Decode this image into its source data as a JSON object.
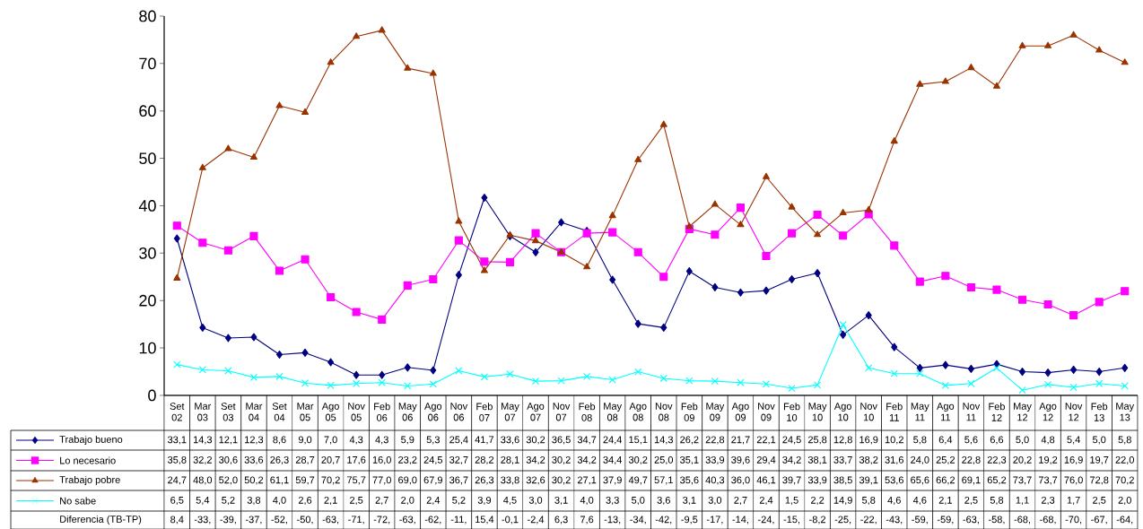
{
  "chart_data": {
    "type": "line",
    "categories": [
      "Set 02",
      "Mar 03",
      "Set 03",
      "Mar 04",
      "Set 04",
      "Mar 05",
      "Ago 05",
      "Nov 05",
      "Feb 06",
      "May 06",
      "Ago 06",
      "Nov 06",
      "Feb 07",
      "May 07",
      "Ago 07",
      "Nov 07",
      "Feb 08",
      "May 08",
      "Ago 08",
      "Nov 08",
      "Feb 09",
      "May 09",
      "Ago 09",
      "Nov 09",
      "Feb 10",
      "May 10",
      "Ago 10",
      "Nov 10",
      "Feb 11",
      "May 11",
      "Ago 11",
      "Nov 11",
      "Feb 12",
      "May 12",
      "Ago 12",
      "Nov 12",
      "Feb 13",
      "May 13"
    ],
    "series": [
      {
        "name": "Trabajo bueno",
        "color": "#000080",
        "marker": "diamond",
        "values": [
          33.1,
          14.3,
          12.1,
          12.3,
          8.6,
          9.0,
          7.0,
          4.3,
          4.3,
          5.9,
          5.3,
          25.4,
          41.7,
          33.6,
          30.2,
          36.5,
          34.7,
          24.4,
          15.1,
          14.3,
          26.2,
          22.8,
          21.7,
          22.1,
          24.5,
          25.8,
          12.8,
          16.9,
          10.2,
          5.8,
          6.4,
          5.6,
          6.6,
          5.0,
          4.8,
          5.4,
          5.0,
          5.8
        ],
        "value_labels": [
          "33,1",
          "14,3",
          "12,1",
          "12,3",
          "8,6",
          "9,0",
          "7,0",
          "4,3",
          "4,3",
          "5,9",
          "5,3",
          "25,4",
          "41,7",
          "33,6",
          "30,2",
          "36,5",
          "34,7",
          "24,4",
          "15,1",
          "14,3",
          "26,2",
          "22,8",
          "21,7",
          "22,1",
          "24,5",
          "25,8",
          "12,8",
          "16,9",
          "10,2",
          "5,8",
          "6,4",
          "5,6",
          "6,6",
          "5,0",
          "4,8",
          "5,4",
          "5,0",
          "5,8"
        ]
      },
      {
        "name": "Lo necesario",
        "color": "#ff00ff",
        "marker": "square",
        "values": [
          35.8,
          32.2,
          30.6,
          33.6,
          26.3,
          28.7,
          20.7,
          17.6,
          16.0,
          23.2,
          24.5,
          32.7,
          28.2,
          28.1,
          34.2,
          30.2,
          34.2,
          34.4,
          30.2,
          25.0,
          35.1,
          33.9,
          39.6,
          29.4,
          34.2,
          38.1,
          33.7,
          38.2,
          31.6,
          24.0,
          25.2,
          22.8,
          22.3,
          20.2,
          19.2,
          16.9,
          19.7,
          22.0
        ],
        "value_labels": [
          "35,8",
          "32,2",
          "30,6",
          "33,6",
          "26,3",
          "28,7",
          "20,7",
          "17,6",
          "16,0",
          "23,2",
          "24,5",
          "32,7",
          "28,2",
          "28,1",
          "34,2",
          "30,2",
          "34,2",
          "34,4",
          "30,2",
          "25,0",
          "35,1",
          "33,9",
          "39,6",
          "29,4",
          "34,2",
          "38,1",
          "33,7",
          "38,2",
          "31,6",
          "24,0",
          "25,2",
          "22,8",
          "22,3",
          "20,2",
          "19,2",
          "16,9",
          "19,7",
          "22,0"
        ]
      },
      {
        "name": "Trabajo pobre",
        "color": "#993300",
        "marker": "triangle",
        "values": [
          24.7,
          48.0,
          52.0,
          50.2,
          61.1,
          59.7,
          70.2,
          75.7,
          77.0,
          69.0,
          67.9,
          36.7,
          26.3,
          33.8,
          32.6,
          30.2,
          27.1,
          37.9,
          49.7,
          57.1,
          35.6,
          40.3,
          36.0,
          46.1,
          39.7,
          33.9,
          38.5,
          39.1,
          53.6,
          65.6,
          66.2,
          69.1,
          65.2,
          73.7,
          73.7,
          76.0,
          72.8,
          70.2
        ],
        "value_labels": [
          "24,7",
          "48,0",
          "52,0",
          "50,2",
          "61,1",
          "59,7",
          "70,2",
          "75,7",
          "77,0",
          "69,0",
          "67,9",
          "36,7",
          "26,3",
          "33,8",
          "32,6",
          "30,2",
          "27,1",
          "37,9",
          "49,7",
          "57,1",
          "35,6",
          "40,3",
          "36,0",
          "46,1",
          "39,7",
          "33,9",
          "38,5",
          "39,1",
          "53,6",
          "65,6",
          "66,2",
          "69,1",
          "65,2",
          "73,7",
          "73,7",
          "76,0",
          "72,8",
          "70,2"
        ]
      },
      {
        "name": "No sabe",
        "color": "#00ffff",
        "marker": "cross",
        "values": [
          6.5,
          5.4,
          5.2,
          3.8,
          4.0,
          2.6,
          2.1,
          2.5,
          2.7,
          2.0,
          2.4,
          5.2,
          3.9,
          4.5,
          3.0,
          3.1,
          4.0,
          3.3,
          5.0,
          3.6,
          3.1,
          3.0,
          2.7,
          2.4,
          1.5,
          2.2,
          14.9,
          5.8,
          4.6,
          4.6,
          2.1,
          2.5,
          5.8,
          1.1,
          2.3,
          1.7,
          2.5,
          2.0
        ],
        "value_labels": [
          "6,5",
          "5,4",
          "5,2",
          "3,8",
          "4,0",
          "2,6",
          "2,1",
          "2,5",
          "2,7",
          "2,0",
          "2,4",
          "5,2",
          "3,9",
          "4,5",
          "3,0",
          "3,1",
          "4,0",
          "3,3",
          "5,0",
          "3,6",
          "3,1",
          "3,0",
          "2,7",
          "2,4",
          "1,5",
          "2,2",
          "14,9",
          "5,8",
          "4,6",
          "4,6",
          "2,1",
          "2,5",
          "5,8",
          "1,1",
          "2,3",
          "1,7",
          "2,5",
          "2,0"
        ]
      },
      {
        "name": "Diferencia  (TB-TP)",
        "values": [
          null,
          null,
          null,
          null,
          null,
          null,
          null,
          null,
          null,
          null,
          null,
          null,
          null,
          null,
          null,
          null,
          null,
          null,
          null,
          null,
          null,
          null,
          null,
          null,
          null,
          null,
          null,
          null,
          null,
          null,
          null,
          null,
          null,
          null,
          null,
          null,
          null,
          null
        ],
        "value_labels": [
          "8,4",
          "-33,",
          "-39,",
          "-37,",
          "-52,",
          "-50,",
          "-63,",
          "-71,",
          "-72,",
          "-63,",
          "-62,",
          "-11,",
          "15,4",
          "-0,1",
          "-2,4",
          "6,3",
          "7,6",
          "-13,",
          "-34,",
          "-42,",
          "-9,5",
          "-17,",
          "-14,",
          "-24,",
          "-15,",
          "-8,2",
          "-25,",
          "-22,",
          "-43,",
          "-59,",
          "-59,",
          "-63,",
          "-58,",
          "-68,",
          "-68,",
          "-70,",
          "-67,",
          "-64,"
        ]
      }
    ],
    "ylim": [
      0,
      80
    ],
    "yticks": [
      0,
      10,
      20,
      30,
      40,
      50,
      60,
      70,
      80
    ],
    "grid": false,
    "legend": "bottom left"
  }
}
